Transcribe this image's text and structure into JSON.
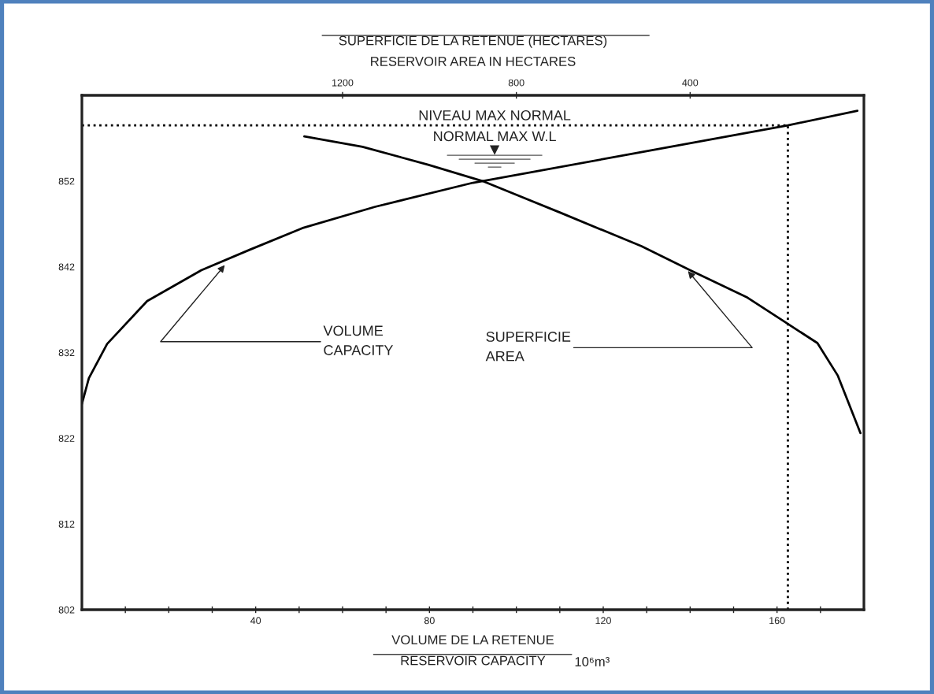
{
  "chart_data": {
    "type": "line",
    "xlabel": "VOLUME DE LA RETENUE\nRESERVOIR CAPACITY",
    "x2label": "SUPERFICIE DE LA RETENUE (HECTARES)\nRESERVOIR AREA IN HECTARES",
    "xlim": [
      0,
      180
    ],
    "xticks": [
      {
        "value": 10,
        "label": null
      },
      {
        "value": 20,
        "label": null
      },
      {
        "value": 30,
        "label": null
      },
      40,
      {
        "value": 50,
        "label": null
      },
      {
        "value": 60,
        "label": null
      },
      {
        "value": 70,
        "label": null
      },
      80,
      {
        "value": 90,
        "label": null
      },
      {
        "value": 100,
        "label": null
      },
      {
        "value": 110,
        "label": null
      },
      120,
      {
        "value": 130,
        "label": null
      },
      {
        "value": 140,
        "label": null
      },
      {
        "value": 150,
        "label": null
      },
      160,
      {
        "value": 170,
        "label": null
      }
    ],
    "x2lim": [
      1800,
      0
    ],
    "x2ticks": [
      1200,
      800,
      400
    ],
    "ylim": [
      802,
      862
    ],
    "yticks": [
      802,
      812,
      822,
      832,
      842,
      852
    ],
    "series": [
      {
        "color": "#000000",
        "x": [
          0,
          1.6,
          5.8,
          15,
          27.5,
          38.7,
          50.7,
          67.5,
          90,
          128,
          162.5,
          178.5
        ],
        "values": [
          826,
          829,
          833,
          838,
          841.6,
          844,
          846.5,
          849,
          851.8,
          855.3,
          858.5,
          860.2
        ]
      },
      {
        "color": "#000000",
        "axis": "x2",
        "x": [
          1288,
          1154,
          1003,
          878,
          698,
          512,
          400,
          268,
          189,
          107,
          60,
          8
        ],
        "values": [
          857.2,
          856,
          853.9,
          852,
          848.3,
          844.4,
          841.6,
          838.4,
          835.8,
          833.1,
          829.3,
          822.6
        ]
      }
    ],
    "ref_lines": [
      {
        "axis": "y",
        "value": 858.5,
        "line_style": "dotted",
        "color": "#000000"
      },
      {
        "axis": "x",
        "value": 162.5,
        "line_style": "dotted",
        "color": "#000000"
      }
    ],
    "annotations": [
      {
        "text": "NIVEAU MAX NORMAL",
        "x": 95,
        "y": 858.5
      },
      {
        "text": "NORMAL MAX W.L",
        "x": 95,
        "y": 858.5
      },
      {
        "text": "VOLUME\nCAPACITY",
        "x": 32.9,
        "y": 842.2
      },
      {
        "text": "SUPERFICIE\nAREA",
        "x": 139.5,
        "y": 841.5
      },
      "10⁶m³"
    ],
    "grid": false,
    "legend": false,
    "marker": "none",
    "line_style": "solid"
  }
}
